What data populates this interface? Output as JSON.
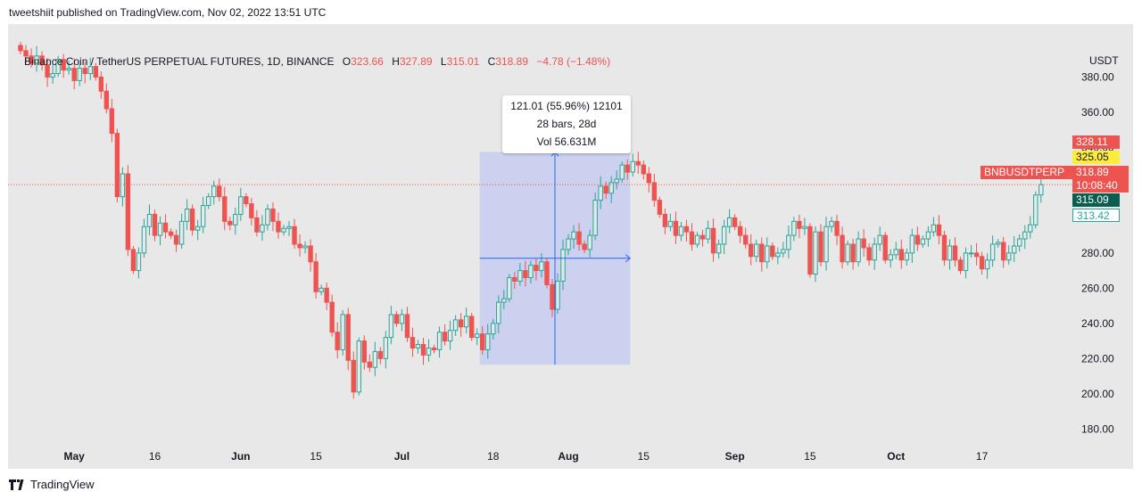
{
  "header": {
    "published_text": "tweetshiit published on TradingView.com, Nov 02, 2022 13:51 UTC"
  },
  "legend": {
    "title": "Binance Coin / TetherUS PERPETUAL FUTURES, 1D, BINANCE",
    "open_label": "O",
    "open": "323.66",
    "high_label": "H",
    "high": "327.89",
    "low_label": "L",
    "low": "315.01",
    "close_label": "C",
    "close": "318.89",
    "change": "−4.78 (−1.48%)"
  },
  "axis": {
    "currency": "USDT"
  },
  "price_labels": {
    "high": "328.11",
    "yellow": "325.05",
    "symbol": "BNBUSDTPERP",
    "last": "318.89",
    "countdown": "10:08:40",
    "dark": "315.09",
    "outline": "313.42"
  },
  "measure_tooltip": {
    "line1": "121.01 (55.96%) 12101",
    "line2": "28 bars, 28d",
    "line3": "Vol 56.631M"
  },
  "footer": {
    "brand": "TradingView"
  },
  "colors": {
    "up": "#26a69a",
    "down": "#ef5350",
    "measure_fill": "#c5cdf0",
    "measure_line": "#2962ff",
    "background": "#e8e8e8"
  },
  "chart_data": {
    "type": "candlestick",
    "symbol": "BNBUSDTPERP",
    "interval": "1D",
    "ylim": [
      170,
      400
    ],
    "yticks": [
      180,
      200,
      220,
      240,
      260,
      280,
      300,
      320,
      340,
      360,
      380
    ],
    "ytick_labels": [
      "180.00",
      "200.00",
      "220.00",
      "240.00",
      "260.00",
      "280.00",
      "300.00",
      "320.00",
      "340.00",
      "360.00",
      "380.00"
    ],
    "xticks": [
      {
        "label": "May",
        "index": 10
      },
      {
        "label": "16",
        "index": 25
      },
      {
        "label": "Jun",
        "index": 41
      },
      {
        "label": "15",
        "index": 55
      },
      {
        "label": "Jul",
        "index": 71
      },
      {
        "label": "18",
        "index": 88
      },
      {
        "label": "Aug",
        "index": 102
      },
      {
        "label": "15",
        "index": 116
      },
      {
        "label": "Sep",
        "index": 133
      },
      {
        "label": "15",
        "index": 147
      },
      {
        "label": "Oct",
        "index": 163
      },
      {
        "label": "17",
        "index": 179
      }
    ],
    "closes": [
      395,
      392,
      388,
      392,
      387,
      380,
      382,
      390,
      384,
      385,
      378,
      385,
      382,
      386,
      380,
      372,
      362,
      348,
      312,
      325,
      282,
      270,
      280,
      295,
      302,
      290,
      297,
      292,
      290,
      285,
      298,
      305,
      293,
      295,
      307,
      312,
      318,
      312,
      298,
      296,
      302,
      312,
      308,
      300,
      292,
      296,
      305,
      298,
      292,
      294,
      295,
      285,
      283,
      284,
      275,
      258,
      260,
      252,
      235,
      225,
      245,
      219,
      201,
      230,
      218,
      215,
      224,
      220,
      232,
      245,
      240,
      245,
      232,
      226,
      228,
      222,
      226,
      225,
      235,
      230,
      236,
      242,
      238,
      244,
      232,
      234,
      225,
      234,
      240,
      252,
      254,
      266,
      264,
      270,
      266,
      273,
      270,
      275,
      262,
      248,
      264,
      282,
      288,
      292,
      285,
      282,
      290,
      310,
      318,
      314,
      320,
      322,
      330,
      326,
      332,
      330,
      325,
      320,
      310,
      302,
      295,
      298,
      290,
      295,
      292,
      285,
      290,
      288,
      294,
      280,
      285,
      295,
      300,
      295,
      290,
      285,
      278,
      285,
      275,
      284,
      278,
      280,
      282,
      290,
      298,
      294,
      295,
      268,
      292,
      275,
      295,
      298,
      290,
      275,
      285,
      275,
      288,
      283,
      276,
      285,
      290,
      276,
      279,
      282,
      276,
      280,
      290,
      285,
      288,
      292,
      296,
      290,
      276,
      284,
      276,
      270,
      280,
      280,
      278,
      271,
      276,
      285,
      286,
      276,
      280,
      284,
      288,
      292,
      296,
      313,
      318.89
    ],
    "measure": {
      "from_index": 86,
      "to_index": 113,
      "price_from": 216.5,
      "price_to": 337.5,
      "change": "121.01 (55.96%) 12101",
      "bars": "28 bars, 28d",
      "volume": "Vol 56.631M"
    },
    "last_price": 318.89
  }
}
